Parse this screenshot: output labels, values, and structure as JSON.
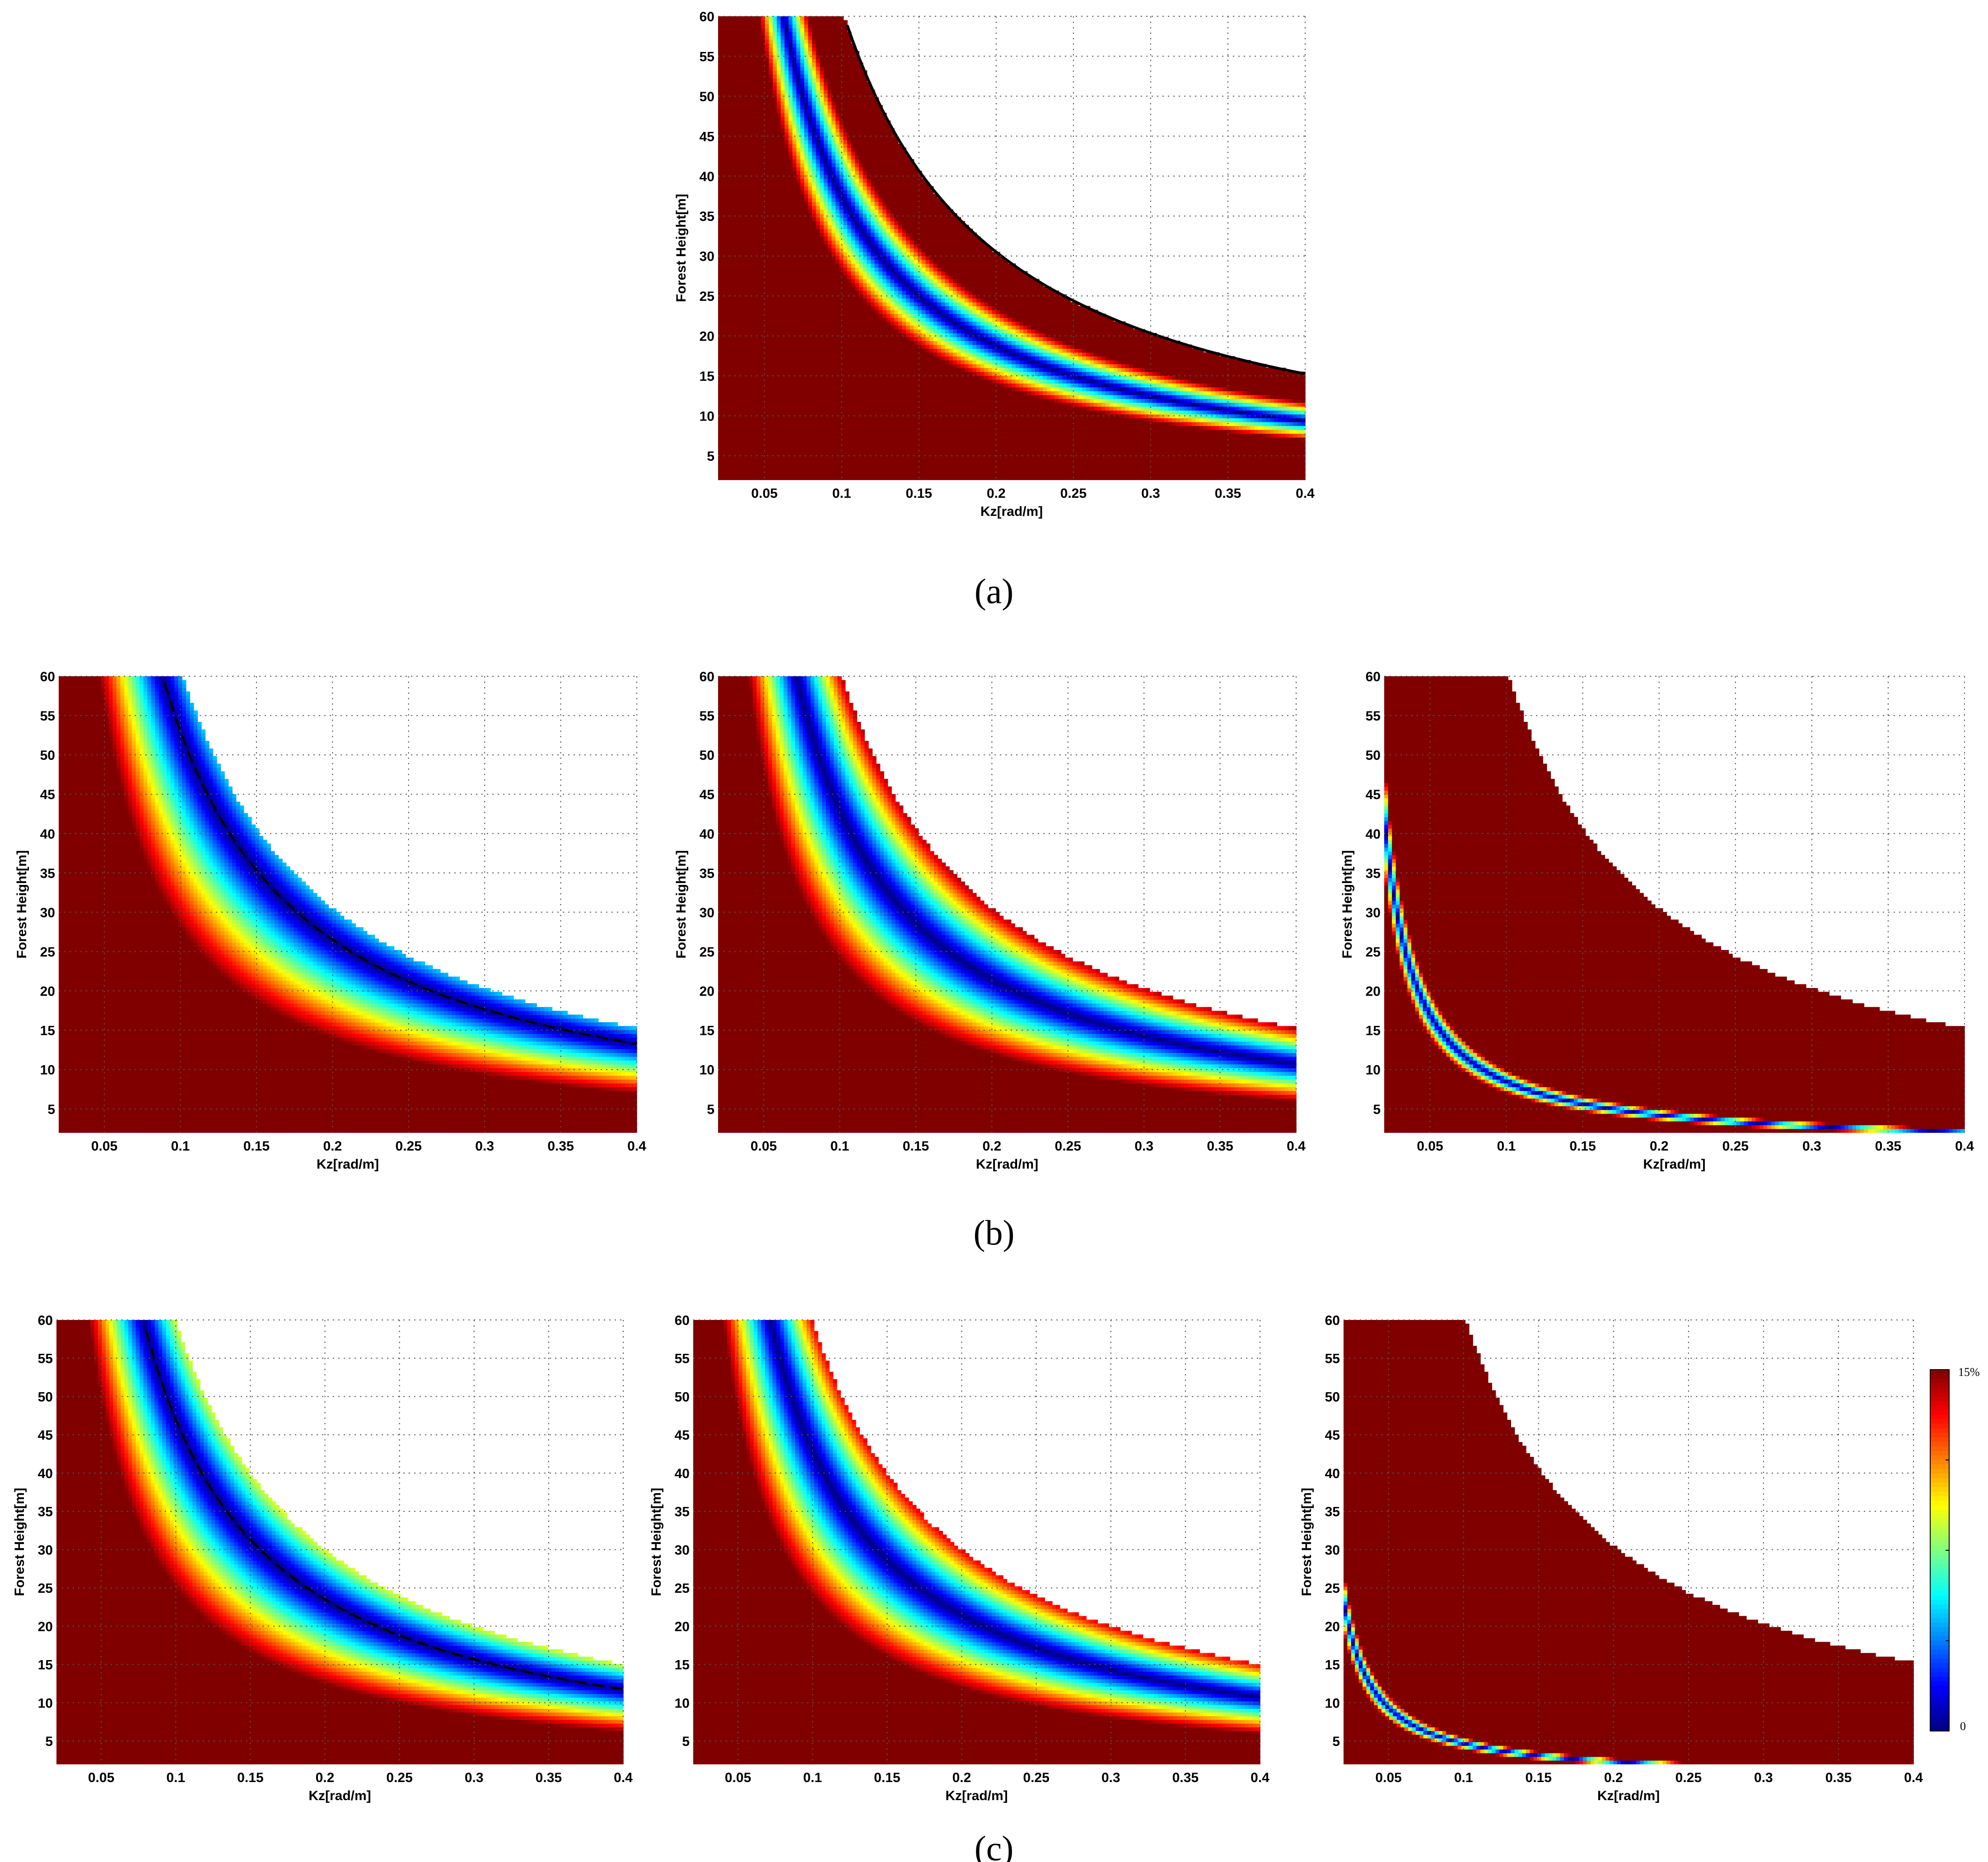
{
  "figure": {
    "panel_captions": [
      "(a)",
      "(b)",
      "(c)"
    ]
  },
  "colorbar": {
    "top_label": "15%",
    "bottom_label": "0",
    "colormap": "jet",
    "min": 0,
    "max": 15
  },
  "colors": {
    "saturated": "#800000",
    "background": "#ffffff",
    "grid": "#555555",
    "line": "#000000"
  },
  "chart_data": [
    {
      "id": "a",
      "type": "heatmap",
      "xlabel": "Kz[rad/m]",
      "ylabel": "Forest Height[m]",
      "xlim": [
        0.02,
        0.4
      ],
      "ylim": [
        2,
        60
      ],
      "xticks": [
        0.05,
        0.1,
        0.15,
        0.2,
        0.25,
        0.3,
        0.35,
        0.4
      ],
      "yticks": [
        5,
        10,
        15,
        20,
        25,
        30,
        35,
        40,
        45,
        50,
        55,
        60
      ],
      "grid": true,
      "valid_region_kz_h_max": 6.1,
      "band_edge_kz_h": 2.8,
      "optimum_kz_h": 3.75,
      "dashed_line": false,
      "edge_color": "#000000",
      "color_scale": [
        0,
        15
      ]
    },
    {
      "id": "b1",
      "type": "heatmap",
      "xlabel": "Kz[rad/m]",
      "ylabel": "Forest Height[m]",
      "xlim": [
        0.02,
        0.4
      ],
      "ylim": [
        2,
        60
      ],
      "xticks": [
        0.05,
        0.1,
        0.15,
        0.2,
        0.25,
        0.3,
        0.35,
        0.4
      ],
      "yticks": [
        5,
        10,
        15,
        20,
        25,
        30,
        35,
        40,
        45,
        50,
        55,
        60
      ],
      "grid": true,
      "valid_region_kz_h_max": 6.1,
      "band_edge_kz_h": 2.8,
      "optimum_kz_h": 5.3,
      "dashed_line": true,
      "color_scale": [
        0,
        15
      ]
    },
    {
      "id": "b2",
      "type": "heatmap",
      "xlabel": "Kz[rad/m]",
      "ylabel": "Forest Height[m]",
      "xlim": [
        0.02,
        0.4
      ],
      "ylim": [
        2,
        60
      ],
      "xticks": [
        0.05,
        0.1,
        0.15,
        0.2,
        0.25,
        0.3,
        0.35,
        0.4
      ],
      "yticks": [
        5,
        10,
        15,
        20,
        25,
        30,
        35,
        40,
        45,
        50,
        55,
        60
      ],
      "grid": true,
      "valid_region_kz_h_max": 6.1,
      "band_edge_kz_h": 2.4,
      "optimum_kz_h": 4.3,
      "dashed_line": false,
      "color_scale": [
        0,
        15
      ]
    },
    {
      "id": "b3",
      "type": "heatmap",
      "xlabel": "Kz[rad/m]",
      "ylabel": "Forest Height[m]",
      "xlim": [
        0.02,
        0.4
      ],
      "ylim": [
        2,
        60
      ],
      "xticks": [
        0.05,
        0.1,
        0.15,
        0.2,
        0.25,
        0.3,
        0.35,
        0.4
      ],
      "yticks": [
        5,
        10,
        15,
        20,
        25,
        30,
        35,
        40,
        45,
        50,
        55,
        60
      ],
      "grid": true,
      "valid_region_kz_h_max": 6.1,
      "narrow_band_kz_h": 0.85,
      "dashed_line": false,
      "color_scale": [
        0,
        15
      ]
    },
    {
      "id": "c1",
      "type": "heatmap",
      "xlabel": "Kz[rad/m]",
      "ylabel": "Forest Height[m]",
      "xlim": [
        0.02,
        0.4
      ],
      "ylim": [
        2,
        60
      ],
      "xticks": [
        0.05,
        0.1,
        0.15,
        0.2,
        0.25,
        0.3,
        0.35,
        0.4
      ],
      "yticks": [
        5,
        10,
        15,
        20,
        25,
        30,
        35,
        40,
        45,
        50,
        55,
        60
      ],
      "grid": true,
      "valid_region_kz_h_max": 6.0,
      "band_edge_kz_h": 2.5,
      "optimum_kz_h": 4.7,
      "dashed_line": true,
      "color_scale": [
        0,
        15
      ]
    },
    {
      "id": "c2",
      "type": "heatmap",
      "xlabel": "Kz[rad/m]",
      "ylabel": "Forest Height[m]",
      "xlim": [
        0.02,
        0.4
      ],
      "ylim": [
        2,
        60
      ],
      "xticks": [
        0.05,
        0.1,
        0.15,
        0.2,
        0.25,
        0.3,
        0.35,
        0.4
      ],
      "yticks": [
        5,
        10,
        15,
        20,
        25,
        30,
        35,
        40,
        45,
        50,
        55,
        60
      ],
      "grid": true,
      "valid_region_kz_h_max": 6.0,
      "band_edge_kz_h": 2.4,
      "optimum_kz_h": 4.3,
      "dashed_line": false,
      "color_scale": [
        0,
        15
      ]
    },
    {
      "id": "c3",
      "type": "heatmap",
      "xlabel": "Kz[rad/m]",
      "ylabel": "Forest Height[m]",
      "xlim": [
        0.02,
        0.4
      ],
      "ylim": [
        2,
        60
      ],
      "xticks": [
        0.05,
        0.1,
        0.15,
        0.2,
        0.25,
        0.3,
        0.35,
        0.4
      ],
      "yticks": [
        5,
        10,
        15,
        20,
        25,
        30,
        35,
        40,
        45,
        50,
        55,
        60
      ],
      "grid": true,
      "valid_region_kz_h_max": 6.1,
      "narrow_band_kz_h": 0.47,
      "dashed_line": false,
      "color_scale": [
        0,
        15
      ]
    }
  ]
}
